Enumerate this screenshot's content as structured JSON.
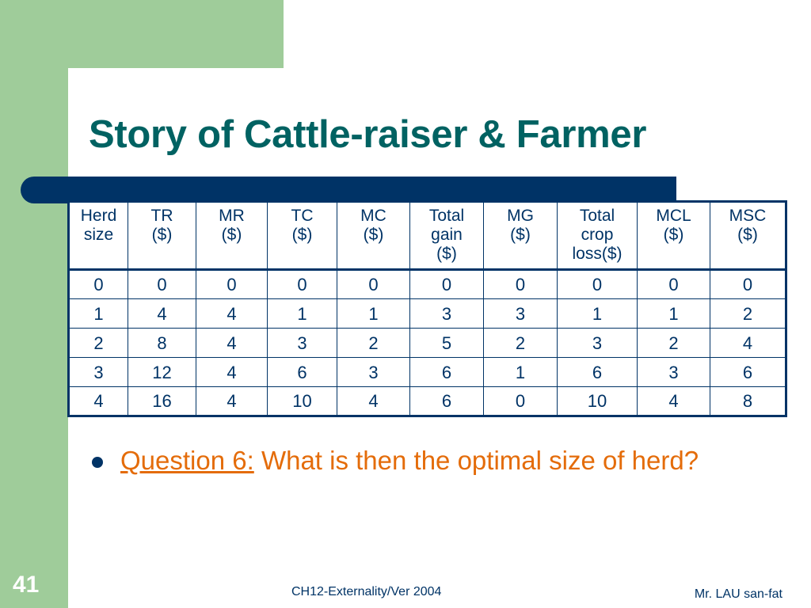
{
  "slide": {
    "title": "Story of Cattle-raiser & Farmer",
    "number": "41",
    "footer_center": "CH12-Externality/Ver 2004",
    "footer_right": "Mr. LAU san-fat"
  },
  "table": {
    "headers": [
      [
        "Herd",
        "size"
      ],
      [
        "TR",
        "($)"
      ],
      [
        "MR",
        "($)"
      ],
      [
        "TC",
        "($)"
      ],
      [
        "MC",
        "($)"
      ],
      [
        "Total",
        "gain",
        "($)"
      ],
      [
        "MG",
        "($)"
      ],
      [
        "Total",
        "crop",
        "loss($)"
      ],
      [
        "MCL",
        "($)"
      ],
      [
        "MSC",
        "($)"
      ]
    ],
    "rows": [
      [
        "0",
        "0",
        "0",
        "0",
        "0",
        "0",
        "0",
        "0",
        "0",
        "0"
      ],
      [
        "1",
        "4",
        "4",
        "1",
        "1",
        "3",
        "3",
        "1",
        "1",
        "2"
      ],
      [
        "2",
        "8",
        "4",
        "3",
        "2",
        "5",
        "2",
        "3",
        "2",
        "4"
      ],
      [
        "3",
        "12",
        "4",
        "6",
        "3",
        "6",
        "1",
        "6",
        "3",
        "6"
      ],
      [
        "4",
        "16",
        "4",
        "10",
        "4",
        "6",
        "0",
        "10",
        "4",
        "8"
      ]
    ]
  },
  "bullet": {
    "label": "Question 6:",
    "text": " What is then the optimal size of herd?"
  },
  "colors": {
    "green": "#9fcc9a",
    "navy": "#003366",
    "title": "#006262",
    "orange": "#e46c0a"
  }
}
